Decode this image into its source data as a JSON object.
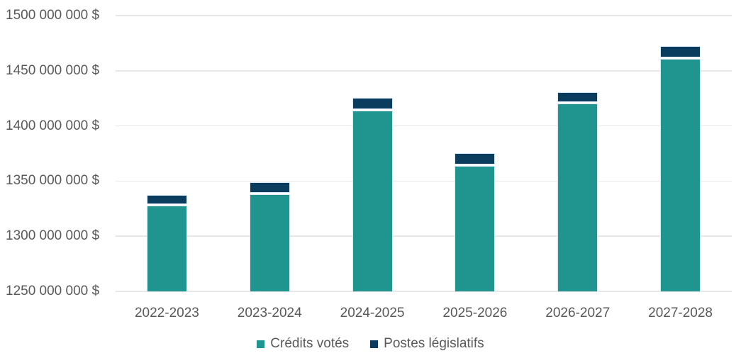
{
  "chart_data": {
    "type": "bar",
    "stacked": true,
    "title": "",
    "xlabel": "",
    "ylabel": "",
    "categories": [
      "2022-2023",
      "2023-2024",
      "2024-2025",
      "2025-2026",
      "2026-2027",
      "2027-2028"
    ],
    "series": [
      {
        "name": "Crédits votés",
        "color": "#20948E",
        "values": [
          1328000000,
          1338000000,
          1414000000,
          1364000000,
          1420000000,
          1461000000
        ]
      },
      {
        "name": "Postes législatifs",
        "color": "#0A3C5D",
        "values": [
          8000000,
          10000000,
          10000000,
          10000000,
          9000000,
          10000000
        ]
      }
    ],
    "y_axis": {
      "min": 1250000000,
      "max": 1500000000,
      "step": 50000000,
      "tick_labels": [
        "1250 000 000 $",
        "1300 000 000 $",
        "1350 000 000 $",
        "1400 000 000 $",
        "1450 000 000 $",
        "1500 000 000 $"
      ]
    },
    "ylim": [
      1250000000,
      1500000000
    ],
    "grid": true,
    "legend_position": "bottom"
  },
  "styles": {
    "text_color": "#595959",
    "gridline_color": "#E7E7E7",
    "segment_border_color": "#DEE9F3",
    "background": "#FFFFFF"
  }
}
